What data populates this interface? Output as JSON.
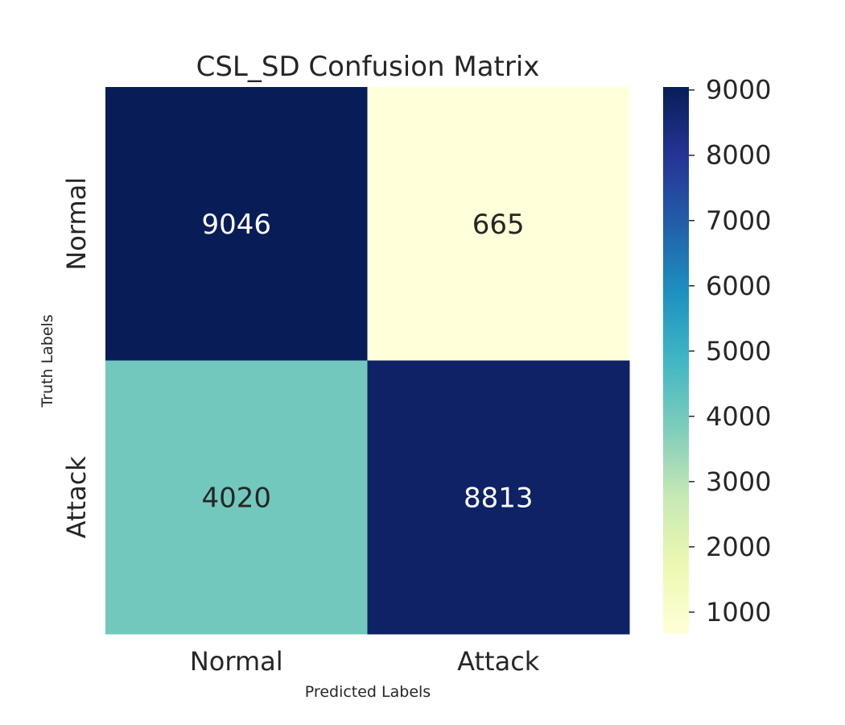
{
  "chart_data": {
    "type": "heatmap",
    "title": "CSL_SD Confusion Matrix",
    "xlabel": "Predicted Labels",
    "ylabel": "Truth Labels",
    "x_categories": [
      "Normal",
      "Attack"
    ],
    "y_categories": [
      "Normal",
      "Attack"
    ],
    "values": [
      [
        9046,
        665
      ],
      [
        4020,
        8813
      ]
    ],
    "colormap": "YlGnBu",
    "colorbar": {
      "vmin": 665,
      "vmax": 9046,
      "ticks": [
        1000,
        2000,
        3000,
        4000,
        5000,
        6000,
        7000,
        8000,
        9000
      ]
    },
    "grid": false
  }
}
